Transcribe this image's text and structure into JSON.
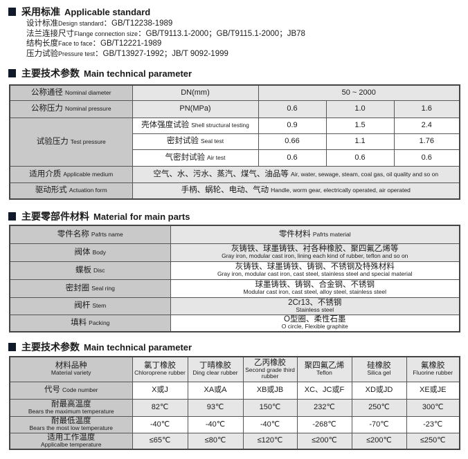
{
  "sections": {
    "standard": {
      "cn": "采用标准",
      "en": "Applicable standard",
      "lines": [
        {
          "cn": "设计标准",
          "en": "Design standard",
          "value": "：GB/T12238-1989"
        },
        {
          "cn": "法兰连接尺寸",
          "en": "Flange connection size",
          "value": "：GB/T9113.1-2000；GB/T9115.1-2000；JB78"
        },
        {
          "cn": "结构长度",
          "en": "Face to face",
          "value": "：GB/T12221-1989"
        },
        {
          "cn": "压力试验",
          "en": "Pressure test",
          "value": "：GB/T13927-1992；JB/T 9092-1999"
        }
      ]
    },
    "tech1": {
      "cn": "主要技术参数",
      "en": "Main technical parameter"
    },
    "material": {
      "cn": "主要零部件材料",
      "en": "Material for main parts"
    },
    "tech2": {
      "cn": "主要技术参数",
      "en": "Main technical parameter"
    }
  },
  "table1": {
    "nominal_diameter": {
      "cn": "公称通径",
      "en": "Nominal diameter",
      "unit": "DN(mm)",
      "value": "50 ~ 2000"
    },
    "nominal_pressure": {
      "cn": "公称压力",
      "en": "Nominal pressure",
      "unit": "PN(MPa)",
      "values": [
        "0.6",
        "1.0",
        "1.6"
      ]
    },
    "test_pressure": {
      "cn": "试验压力",
      "en": "Test pressure",
      "rows": [
        {
          "cn": "壳体强度试验",
          "en": "Shell structural testing",
          "values": [
            "0.9",
            "1.5",
            "2.4"
          ]
        },
        {
          "cn": "密封试验",
          "en": "Seal test",
          "values": [
            "0.66",
            "1.1",
            "1.76"
          ]
        },
        {
          "cn": "气密封试验",
          "en": "Air test",
          "values": [
            "0.6",
            "0.6",
            "0.6"
          ]
        }
      ]
    },
    "medium": {
      "cn": "适用介质",
      "en": "Applicable medium",
      "value_cn": "空气、水、污水、蒸汽、煤气、油品等",
      "value_en": "Air, water, sewage, steam, coal gas, oil quality and so on"
    },
    "actuation": {
      "cn": "驱动形式",
      "en": "Actuation form",
      "value_cn": "手柄、蜗轮、电动、气动",
      "value_en": "Handle, worm gear, electrically operated, air operated"
    }
  },
  "table2": {
    "header": {
      "name_cn": "零件名称",
      "name_en": "Pafrts name",
      "mat_cn": "零件材料",
      "mat_en": "Pafrts material"
    },
    "rows": [
      {
        "cn": "阀体",
        "en": "Body",
        "mat_cn": "灰铸铁、球墨铸铁、衬各种橡胶、聚四氟乙烯等",
        "mat_en": "Gray iron, modular cast iron, lining each kind of rubber, teflon and so on"
      },
      {
        "cn": "蝶板",
        "en": "Disc",
        "mat_cn": "灰铸铁、球墨铸铁、铸钢、不锈钢及特殊材料",
        "mat_en": "Gray iron, modular cast iron, cast steel, stainless steel and special material"
      },
      {
        "cn": "密封圈",
        "en": "Seal ring",
        "mat_cn": "球墨铸铁、铸钢、合金钢、不锈钢",
        "mat_en": "Modular cast iron, cast steel, alloy steel, stainless steel"
      },
      {
        "cn": "阀杆",
        "en": "Stem",
        "mat_cn": "2Cr13、不锈钢",
        "mat_en": "Stainless steel"
      },
      {
        "cn": "填料",
        "en": "Packing",
        "mat_cn": "O型圈、柔性石墨",
        "mat_en": "O circle, Flexible graphite"
      }
    ]
  },
  "table3": {
    "header": {
      "cn": "材料品种",
      "en": "Material variety"
    },
    "materials": [
      {
        "cn": "氯丁橡胶",
        "en": "Chloroprene rubber"
      },
      {
        "cn": "丁晴橡胶",
        "en": "Ding clear rubber"
      },
      {
        "cn": "乙丙橡胶",
        "en": "Second grade third rubber"
      },
      {
        "cn": "聚四氟乙烯",
        "en": "Teflon"
      },
      {
        "cn": "硅橡胶",
        "en": "Silica gel"
      },
      {
        "cn": "氟橡胶",
        "en": "Fluorine rubber"
      }
    ],
    "rows": [
      {
        "cn": "代号",
        "en": "Code number",
        "values": [
          "X或J",
          "XA或A",
          "XB或JB",
          "XC、JC或F",
          "XD或JD",
          "XE或JE"
        ]
      },
      {
        "cn": "耐最高温度",
        "en": "Bears the maximum temperature",
        "values": [
          "82℃",
          "93℃",
          "150℃",
          "232℃",
          "250℃",
          "300℃"
        ]
      },
      {
        "cn": "耐最低温度",
        "en": "Bears the most low temperature",
        "values": [
          "-40℃",
          "-40℃",
          "-40℃",
          "-268℃",
          "-70℃",
          "-23℃"
        ]
      },
      {
        "cn": "适用工作温度",
        "en": "Applicalbe temperature",
        "values": [
          "≤65℃",
          "≤80℃",
          "≤120℃",
          "≤200℃",
          "≤200℃",
          "≤250℃"
        ]
      }
    ]
  }
}
